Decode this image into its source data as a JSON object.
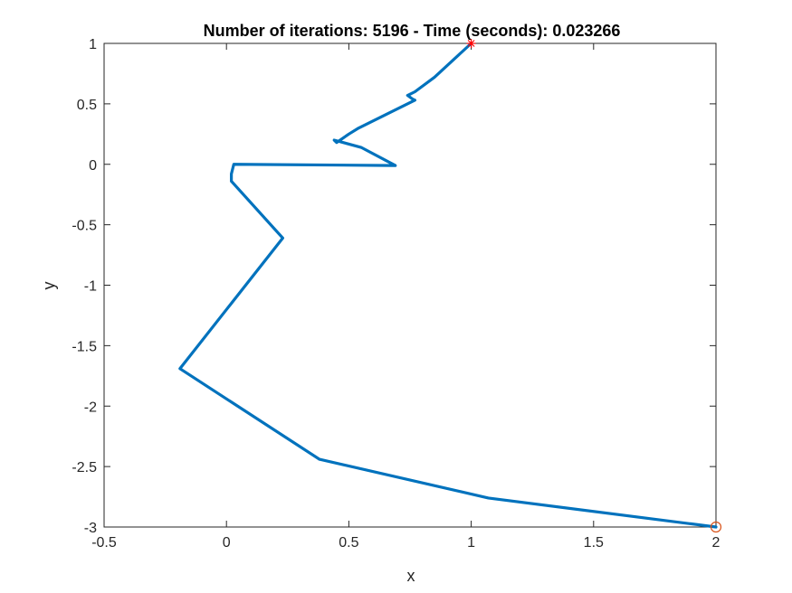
{
  "chart_data": {
    "type": "line",
    "title": "Number of iterations: 5196 - Time (seconds): 0.023266",
    "xlabel": "x",
    "ylabel": "y",
    "xlim": [
      -0.5,
      2
    ],
    "ylim": [
      -3,
      1
    ],
    "xticks": [
      -0.5,
      0,
      0.5,
      1,
      1.5,
      2
    ],
    "yticks": [
      -3,
      -2.5,
      -2,
      -1.5,
      -1,
      -0.5,
      0,
      0.5,
      1
    ],
    "xtick_labels": [
      "-0.5",
      "0",
      "0.5",
      "1",
      "1.5",
      "2"
    ],
    "ytick_labels": [
      "-3",
      "-2.5",
      "-2",
      "-1.5",
      "-1",
      "-0.5",
      "0",
      "0.5",
      "1"
    ],
    "grid": false,
    "series": [
      {
        "color": "#0072BD",
        "x": [
          2.0,
          1.07,
          0.38,
          -0.19,
          0.23,
          0.02,
          0.02,
          0.03,
          0.69,
          0.55,
          0.44,
          0.45,
          0.5,
          0.54,
          0.77,
          0.76,
          0.74,
          0.77,
          0.85,
          1.0
        ],
        "y": [
          -3.0,
          -2.76,
          -2.44,
          -1.69,
          -0.61,
          -0.14,
          -0.08,
          0.0,
          -0.01,
          0.14,
          0.2,
          0.18,
          0.25,
          0.3,
          0.53,
          0.54,
          0.57,
          0.6,
          0.72,
          1.0
        ]
      }
    ],
    "markers": [
      {
        "name": "start",
        "symbol": "asterisk",
        "color": "#FF0000",
        "x": 1.0,
        "y": 1.0
      },
      {
        "name": "end",
        "symbol": "circle",
        "color": "#D95319",
        "x": 2.0,
        "y": -3.0
      }
    ]
  }
}
